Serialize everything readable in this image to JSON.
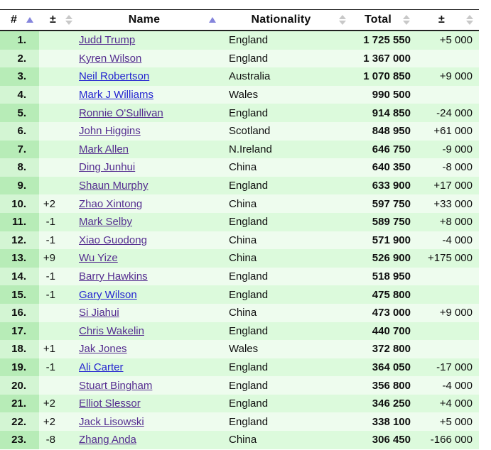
{
  "colors": {
    "row_odd": "#dcfadc",
    "row_even": "#eefcee",
    "rank_odd": "#b7ecb7",
    "rank_even": "#d3f5d3",
    "sort_active_arrow": "#8585dc",
    "sort_idle_arrow": "#c8c8c8",
    "link_unvisited": "#2424d1",
    "link_visited": "#552d90",
    "border_dark": "#222222"
  },
  "table": {
    "columns": [
      {
        "id": "rank",
        "label": "#",
        "sort": "asc"
      },
      {
        "id": "change",
        "label": "±",
        "sort": "both"
      },
      {
        "id": "name",
        "label": "Name",
        "sort": "asc"
      },
      {
        "id": "nationality",
        "label": "Nationality",
        "sort": "both"
      },
      {
        "id": "total",
        "label": "Total",
        "sort": "both"
      },
      {
        "id": "money_change",
        "label": "±",
        "sort": "both"
      }
    ],
    "rows": [
      {
        "rank": "1.",
        "change": "",
        "name": "Judd Trump",
        "nationality": "England",
        "total": "1 725 550",
        "money_change": "+5 000",
        "link_state": "visited"
      },
      {
        "rank": "2.",
        "change": "",
        "name": "Kyren Wilson",
        "nationality": "England",
        "total": "1 367 000",
        "money_change": "",
        "link_state": "visited"
      },
      {
        "rank": "3.",
        "change": "",
        "name": "Neil Robertson",
        "nationality": "Australia",
        "total": "1 070 850",
        "money_change": "+9 000",
        "link_state": "unvisited"
      },
      {
        "rank": "4.",
        "change": "",
        "name": "Mark J Williams",
        "nationality": "Wales",
        "total": "990 500",
        "money_change": "",
        "link_state": "unvisited"
      },
      {
        "rank": "5.",
        "change": "",
        "name": "Ronnie O'Sullivan",
        "nationality": "England",
        "total": "914 850",
        "money_change": "-24 000",
        "link_state": "visited"
      },
      {
        "rank": "6.",
        "change": "",
        "name": "John Higgins",
        "nationality": "Scotland",
        "total": "848 950",
        "money_change": "+61 000",
        "link_state": "visited"
      },
      {
        "rank": "7.",
        "change": "",
        "name": "Mark Allen",
        "nationality": "N.Ireland",
        "total": "646 750",
        "money_change": "-9 000",
        "link_state": "visited"
      },
      {
        "rank": "8.",
        "change": "",
        "name": "Ding Junhui",
        "nationality": "China",
        "total": "640 350",
        "money_change": "-8 000",
        "link_state": "visited"
      },
      {
        "rank": "9.",
        "change": "",
        "name": "Shaun Murphy",
        "nationality": "England",
        "total": "633 900",
        "money_change": "+17 000",
        "link_state": "visited"
      },
      {
        "rank": "10.",
        "change": "+2",
        "name": "Zhao Xintong",
        "nationality": "China",
        "total": "597 750",
        "money_change": "+33 000",
        "link_state": "visited"
      },
      {
        "rank": "11.",
        "change": "-1",
        "name": "Mark Selby",
        "nationality": "England",
        "total": "589 750",
        "money_change": "+8 000",
        "link_state": "visited"
      },
      {
        "rank": "12.",
        "change": "-1",
        "name": "Xiao Guodong",
        "nationality": "China",
        "total": "571 900",
        "money_change": "-4 000",
        "link_state": "visited"
      },
      {
        "rank": "13.",
        "change": "+9",
        "name": "Wu Yize",
        "nationality": "China",
        "total": "526 900",
        "money_change": "+175 000",
        "link_state": "visited"
      },
      {
        "rank": "14.",
        "change": "-1",
        "name": "Barry Hawkins",
        "nationality": "England",
        "total": "518 950",
        "money_change": "",
        "link_state": "visited"
      },
      {
        "rank": "15.",
        "change": "-1",
        "name": "Gary Wilson",
        "nationality": "England",
        "total": "475 800",
        "money_change": "",
        "link_state": "unvisited"
      },
      {
        "rank": "16.",
        "change": "",
        "name": "Si Jiahui",
        "nationality": "China",
        "total": "473 000",
        "money_change": "+9 000",
        "link_state": "visited"
      },
      {
        "rank": "17.",
        "change": "",
        "name": "Chris Wakelin",
        "nationality": "England",
        "total": "440 700",
        "money_change": "",
        "link_state": "visited"
      },
      {
        "rank": "18.",
        "change": "+1",
        "name": "Jak Jones",
        "nationality": "Wales",
        "total": "372 800",
        "money_change": "",
        "link_state": "visited"
      },
      {
        "rank": "19.",
        "change": "-1",
        "name": "Ali Carter",
        "nationality": "England",
        "total": "364 050",
        "money_change": "-17 000",
        "link_state": "unvisited"
      },
      {
        "rank": "20.",
        "change": "",
        "name": "Stuart Bingham",
        "nationality": "England",
        "total": "356 800",
        "money_change": "-4 000",
        "link_state": "visited"
      },
      {
        "rank": "21.",
        "change": "+2",
        "name": "Elliot Slessor",
        "nationality": "England",
        "total": "346 250",
        "money_change": "+4 000",
        "link_state": "visited"
      },
      {
        "rank": "22.",
        "change": "+2",
        "name": "Jack Lisowski",
        "nationality": "England",
        "total": "338 100",
        "money_change": "+5 000",
        "link_state": "visited"
      },
      {
        "rank": "23.",
        "change": "-8",
        "name": "Zhang Anda",
        "nationality": "China",
        "total": "306 450",
        "money_change": "-166 000",
        "link_state": "visited"
      }
    ]
  }
}
